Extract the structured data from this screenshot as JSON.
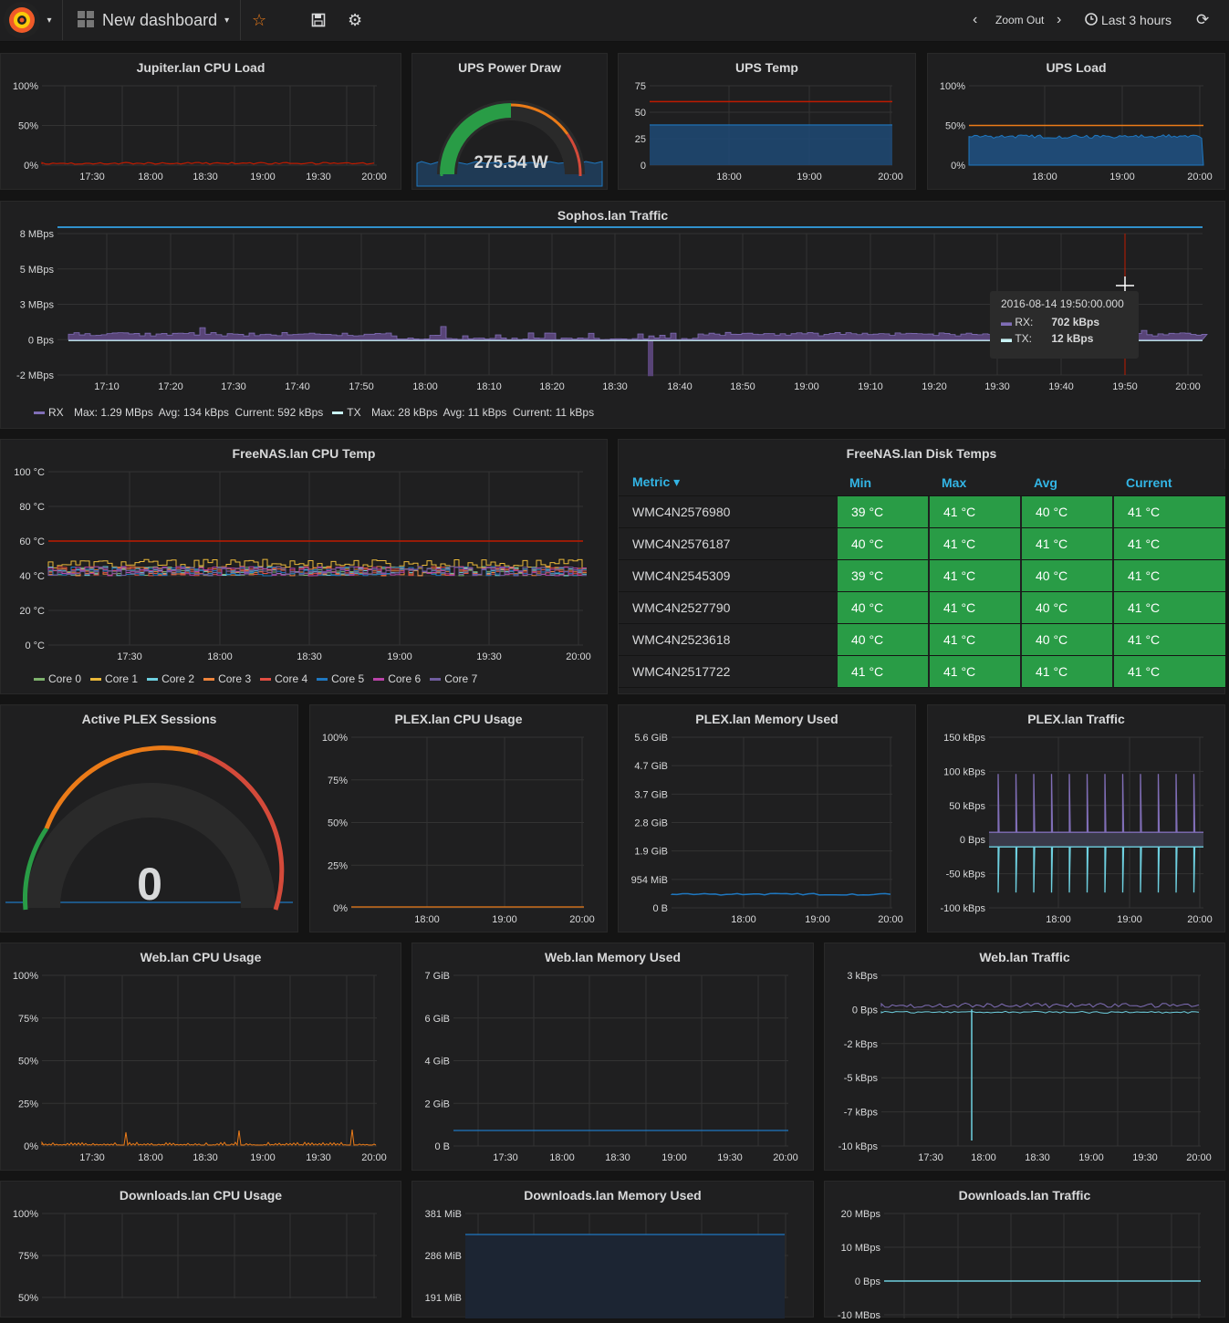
{
  "topbar": {
    "dashboard_title": "New dashboard",
    "zoom_out": "Zoom Out",
    "time_range": "Last 3 hours"
  },
  "colors": {
    "bg": "#141414",
    "panel": "#1f1f20",
    "threshold_red": "#bf1b00",
    "orange": "#eb7b18",
    "blue": "#33b5e5",
    "green": "#299c46"
  },
  "panels": {
    "jupiter_cpu": {
      "title": "Jupiter.lan CPU Load",
      "y_ticks": [
        "100%",
        "50%",
        "0%"
      ],
      "x_ticks": [
        "17:30",
        "18:00",
        "18:30",
        "19:00",
        "19:30",
        "20:00"
      ]
    },
    "ups_power": {
      "title": "UPS Power Draw",
      "value": "275.54 W"
    },
    "ups_temp": {
      "title": "UPS Temp",
      "y_ticks": [
        "75",
        "50",
        "25",
        "0"
      ],
      "x_ticks": [
        "18:00",
        "19:00",
        "20:00"
      ]
    },
    "ups_load": {
      "title": "UPS Load",
      "y_ticks": [
        "100%",
        "50%",
        "0%"
      ],
      "x_ticks": [
        "18:00",
        "19:00",
        "20:00"
      ]
    },
    "sophos": {
      "title": "Sophos.lan Traffic",
      "y_ticks": [
        "8 MBps",
        "5 MBps",
        "3 MBps",
        "0 Bps",
        "-2 MBps"
      ],
      "x_ticks": [
        "17:10",
        "17:20",
        "17:30",
        "17:40",
        "17:50",
        "18:00",
        "18:10",
        "18:20",
        "18:30",
        "18:40",
        "18:50",
        "19:00",
        "19:10",
        "19:20",
        "19:30",
        "19:40",
        "19:50",
        "20:00"
      ],
      "tooltip": {
        "time": "2016-08-14 19:50:00.000",
        "rx_label": "RX:",
        "rx_value": "702 kBps",
        "tx_label": "TX:",
        "tx_value": "12 kBps"
      },
      "legend": [
        {
          "name": "RX",
          "stats": "Max: 1.29 MBps  Avg: 134 kBps  Current: 592 kBps",
          "color": "#806eb7"
        },
        {
          "name": "TX",
          "stats": "Max: 28 kBps  Avg: 11 kBps  Current: 11 kBps",
          "color": "#c8f2f4"
        }
      ]
    },
    "freenas_cpu": {
      "title": "FreeNAS.lan CPU Temp",
      "y_ticks": [
        "100 °C",
        "80 °C",
        "60 °C",
        "40 °C",
        "20 °C",
        "0 °C"
      ],
      "x_ticks": [
        "17:30",
        "18:00",
        "18:30",
        "19:00",
        "19:30",
        "20:00"
      ],
      "legend": [
        {
          "name": "Core 0",
          "color": "#7eb26d"
        },
        {
          "name": "Core 1",
          "color": "#eab839"
        },
        {
          "name": "Core 2",
          "color": "#6ed0e0"
        },
        {
          "name": "Core 3",
          "color": "#ef843c"
        },
        {
          "name": "Core 4",
          "color": "#e24d42"
        },
        {
          "name": "Core 5",
          "color": "#1f78c1"
        },
        {
          "name": "Core 6",
          "color": "#ba43a9"
        },
        {
          "name": "Core 7",
          "color": "#705da0"
        }
      ]
    },
    "freenas_disks": {
      "title": "FreeNAS.lan Disk Temps",
      "columns": [
        "Metric",
        "Min",
        "Max",
        "Avg",
        "Current"
      ],
      "rows": [
        [
          "WMC4N2576980",
          "39 °C",
          "41 °C",
          "40 °C",
          "41 °C"
        ],
        [
          "WMC4N2576187",
          "40 °C",
          "41 °C",
          "41 °C",
          "41 °C"
        ],
        [
          "WMC4N2545309",
          "39 °C",
          "41 °C",
          "40 °C",
          "41 °C"
        ],
        [
          "WMC4N2527790",
          "40 °C",
          "41 °C",
          "40 °C",
          "41 °C"
        ],
        [
          "WMC4N2523618",
          "40 °C",
          "41 °C",
          "40 °C",
          "41 °C"
        ],
        [
          "WMC4N2517722",
          "41 °C",
          "41 °C",
          "41 °C",
          "41 °C"
        ]
      ]
    },
    "plex_sessions": {
      "title": "Active PLEX Sessions",
      "value": "0"
    },
    "plex_cpu": {
      "title": "PLEX.lan CPU Usage",
      "y_ticks": [
        "100%",
        "75%",
        "50%",
        "25%",
        "0%"
      ],
      "x_ticks": [
        "18:00",
        "19:00",
        "20:00"
      ]
    },
    "plex_mem": {
      "title": "PLEX.lan Memory Used",
      "y_ticks": [
        "5.6 GiB",
        "4.7 GiB",
        "3.7 GiB",
        "2.8 GiB",
        "1.9 GiB",
        "954 MiB",
        "0 B"
      ],
      "x_ticks": [
        "18:00",
        "19:00",
        "20:00"
      ]
    },
    "plex_traffic": {
      "title": "PLEX.lan Traffic",
      "y_ticks": [
        "150 kBps",
        "100 kBps",
        "50 kBps",
        "0 Bps",
        "-50 kBps",
        "-100 kBps"
      ],
      "x_ticks": [
        "18:00",
        "19:00",
        "20:00"
      ]
    },
    "web_cpu": {
      "title": "Web.lan CPU Usage",
      "y_ticks": [
        "100%",
        "75%",
        "50%",
        "25%",
        "0%"
      ],
      "x_ticks": [
        "17:30",
        "18:00",
        "18:30",
        "19:00",
        "19:30",
        "20:00"
      ]
    },
    "web_mem": {
      "title": "Web.lan Memory Used",
      "y_ticks": [
        "7 GiB",
        "6 GiB",
        "4 GiB",
        "2 GiB",
        "0 B"
      ],
      "x_ticks": [
        "17:30",
        "18:00",
        "18:30",
        "19:00",
        "19:30",
        "20:00"
      ]
    },
    "web_traffic": {
      "title": "Web.lan Traffic",
      "y_ticks": [
        "3 kBps",
        "0 Bps",
        "-2 kBps",
        "-5 kBps",
        "-7 kBps",
        "-10 kBps"
      ],
      "x_ticks": [
        "17:30",
        "18:00",
        "18:30",
        "19:00",
        "19:30",
        "20:00"
      ]
    },
    "dl_cpu": {
      "title": "Downloads.lan CPU Usage",
      "y_ticks": [
        "100%",
        "75%",
        "50%"
      ]
    },
    "dl_mem": {
      "title": "Downloads.lan Memory Used",
      "y_ticks": [
        "381 MiB",
        "286 MiB",
        "191 MiB"
      ]
    },
    "dl_traffic": {
      "title": "Downloads.lan Traffic",
      "y_ticks": [
        "20 MBps",
        "10 MBps",
        "0 Bps",
        "-10 MBps"
      ]
    }
  }
}
